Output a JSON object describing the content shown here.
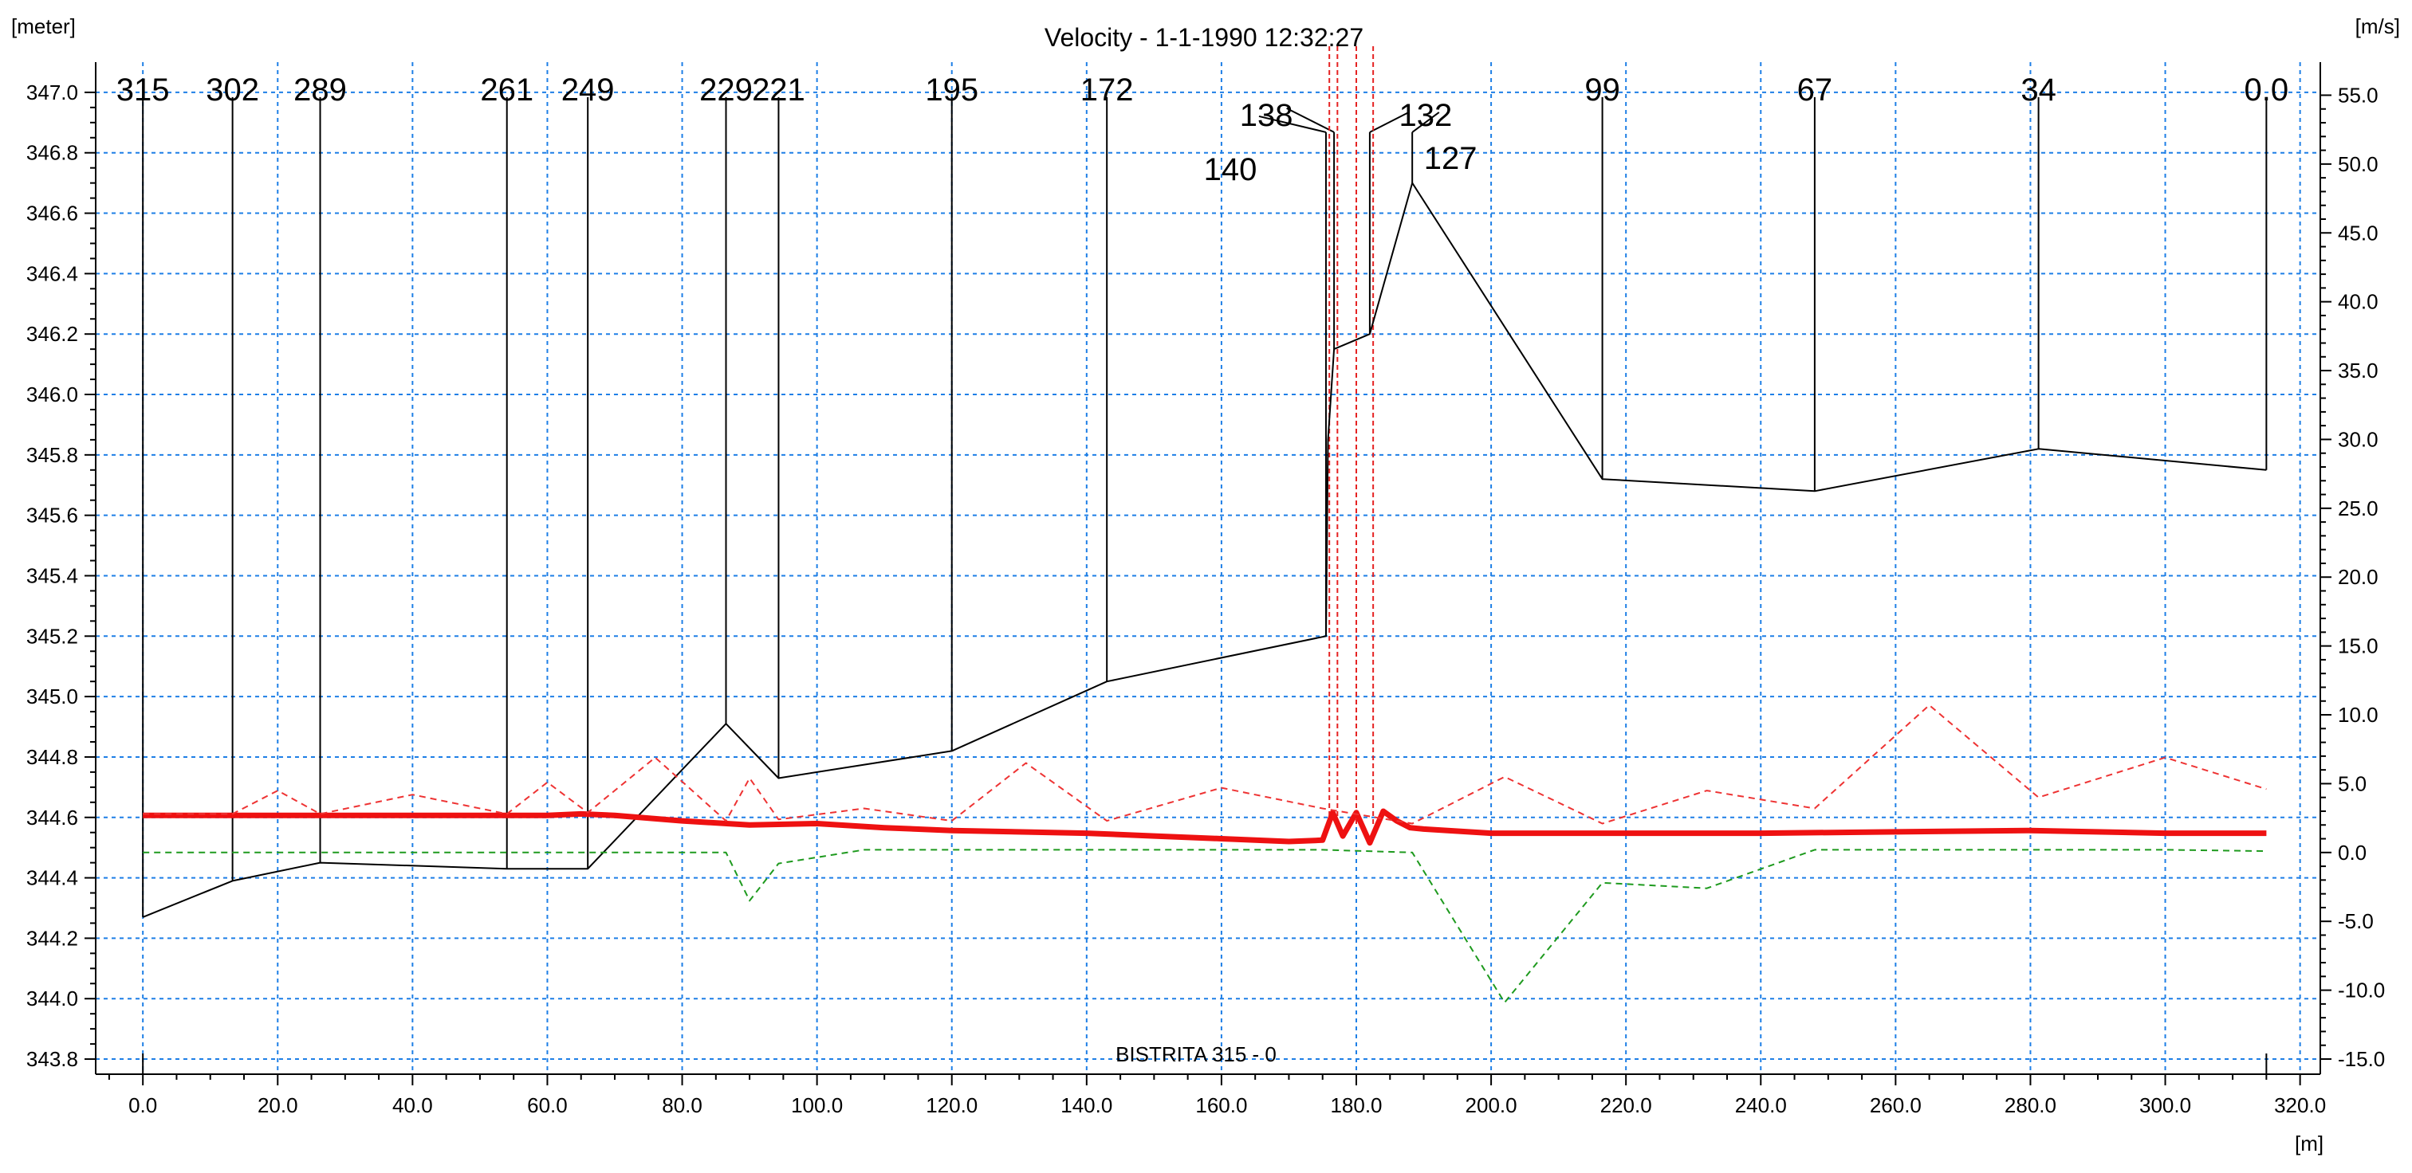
{
  "chart_data": {
    "type": "line",
    "title": "Velocity - 1-1-1990 12:32:27",
    "left_axis_unit": "[meter]",
    "right_axis_unit": "[m/s]",
    "x_axis_unit": "[m]",
    "branch_label": "BISTRITA  315 - 0",
    "xlim": [
      -7,
      323
    ],
    "ylim_left": [
      343.75,
      347.1
    ],
    "ylim_right": [
      -16.1,
      57.4
    ],
    "x_ticks": [
      "0.0",
      "20.0",
      "40.0",
      "60.0",
      "80.0",
      "100.0",
      "120.0",
      "140.0",
      "160.0",
      "180.0",
      "200.0",
      "220.0",
      "240.0",
      "260.0",
      "280.0",
      "300.0",
      "320.0"
    ],
    "y_left_ticks": [
      "347.0",
      "346.8",
      "346.6",
      "346.4",
      "346.2",
      "346.0",
      "345.8",
      "345.6",
      "345.4",
      "345.2",
      "345.0",
      "344.8",
      "344.6",
      "344.4",
      "344.2",
      "344.0",
      "343.8"
    ],
    "y_right_ticks": [
      "55.0",
      "50.0",
      "45.0",
      "40.0",
      "35.0",
      "30.0",
      "25.0",
      "20.0",
      "15.0",
      "10.0",
      "5.0",
      "0.0",
      "-5.0",
      "-10.0",
      "-15.0"
    ],
    "grid": true,
    "sections": [
      {
        "label": "315",
        "x": 0.0,
        "bed": 344.27
      },
      {
        "label": "302",
        "x": 13.3,
        "bed": 344.39
      },
      {
        "label": "289",
        "x": 26.3,
        "bed": 344.45
      },
      {
        "label": "261",
        "x": 54.0,
        "bed": 344.43
      },
      {
        "label": "249",
        "x": 66.0,
        "bed": 344.43
      },
      {
        "label": "229",
        "x": 86.5,
        "bed": 344.91
      },
      {
        "label": "221",
        "x": 94.3,
        "bed": 344.73
      },
      {
        "label": "195",
        "x": 120.0,
        "bed": 344.82
      },
      {
        "label": "172",
        "x": 143.0,
        "bed": 345.05
      },
      {
        "label": "140",
        "x": 175.5,
        "bed": 345.2
      },
      {
        "label": "138",
        "x": 176.7,
        "bed": 346.15
      },
      {
        "label": "132",
        "x": 182.0,
        "bed": 346.2
      },
      {
        "label": "127",
        "x": 188.3,
        "bed": 346.7
      },
      {
        "label": "99",
        "x": 216.5,
        "bed": 345.72
      },
      {
        "label": "67",
        "x": 248.0,
        "bed": 345.68
      },
      {
        "label": "34",
        "x": 281.2,
        "bed": 345.82
      },
      {
        "label": "0.0",
        "x": 315.0,
        "bed": 345.75
      }
    ],
    "series": [
      {
        "axis": "left",
        "style": "solid-black",
        "x": [
          0.0,
          13.3,
          26.3,
          54.0,
          66.0,
          86.5,
          94.3,
          120.0,
          143.0,
          175.5,
          175.8,
          176.7,
          182.0,
          188.3,
          216.5,
          248.0,
          281.2,
          315.0
        ],
        "values": [
          344.27,
          344.39,
          344.45,
          344.43,
          344.43,
          344.91,
          344.73,
          344.82,
          345.05,
          345.2,
          345.85,
          346.15,
          346.2,
          346.7,
          345.72,
          345.68,
          345.82,
          345.75
        ]
      },
      {
        "axis": "right",
        "style": "thick-red",
        "x": [
          0,
          10,
          20,
          30,
          40,
          50,
          60,
          65,
          70,
          80,
          90,
          100,
          110,
          120,
          140,
          150,
          160,
          170,
          175,
          176.5,
          178,
          180,
          182,
          184,
          186,
          188,
          190,
          200,
          220,
          240,
          260,
          280,
          300,
          315
        ],
        "values": [
          2.7,
          2.7,
          2.7,
          2.7,
          2.7,
          2.7,
          2.7,
          2.8,
          2.7,
          2.3,
          2.0,
          2.1,
          1.8,
          1.6,
          1.4,
          1.2,
          1.0,
          0.8,
          0.9,
          2.9,
          1.2,
          2.9,
          0.7,
          3.0,
          2.3,
          1.8,
          1.7,
          1.4,
          1.4,
          1.4,
          1.5,
          1.6,
          1.4,
          1.4
        ]
      },
      {
        "axis": "right",
        "style": "dashed-red",
        "x": [
          0,
          13.3,
          20,
          26.3,
          40,
          54,
          60,
          66,
          76,
          86.5,
          90,
          94.3,
          107,
          120,
          131,
          143,
          160,
          175,
          188.3,
          202,
          216.5,
          232,
          248,
          265,
          281.2,
          300,
          315
        ],
        "values": [
          2.8,
          2.8,
          4.5,
          2.8,
          4.2,
          2.8,
          5.1,
          2.9,
          6.9,
          2.3,
          5.4,
          2.4,
          3.2,
          2.3,
          6.5,
          2.3,
          4.7,
          3.2,
          2.1,
          5.5,
          2.1,
          4.5,
          3.2,
          10.7,
          4.0,
          6.9,
          4.6
        ]
      },
      {
        "axis": "right",
        "style": "dashed-green",
        "x": [
          0,
          13.3,
          26.3,
          54,
          66,
          86.5,
          90,
          94.3,
          107,
          120,
          143,
          175,
          188.3,
          202,
          216.5,
          232,
          248,
          281.2,
          300,
          315
        ],
        "values": [
          0.0,
          0.0,
          0.0,
          0.0,
          0.0,
          0.0,
          -3.5,
          -0.8,
          0.2,
          0.2,
          0.2,
          0.2,
          0.0,
          -10.9,
          -2.2,
          -2.6,
          0.2,
          0.2,
          0.2,
          0.1
        ]
      }
    ]
  }
}
